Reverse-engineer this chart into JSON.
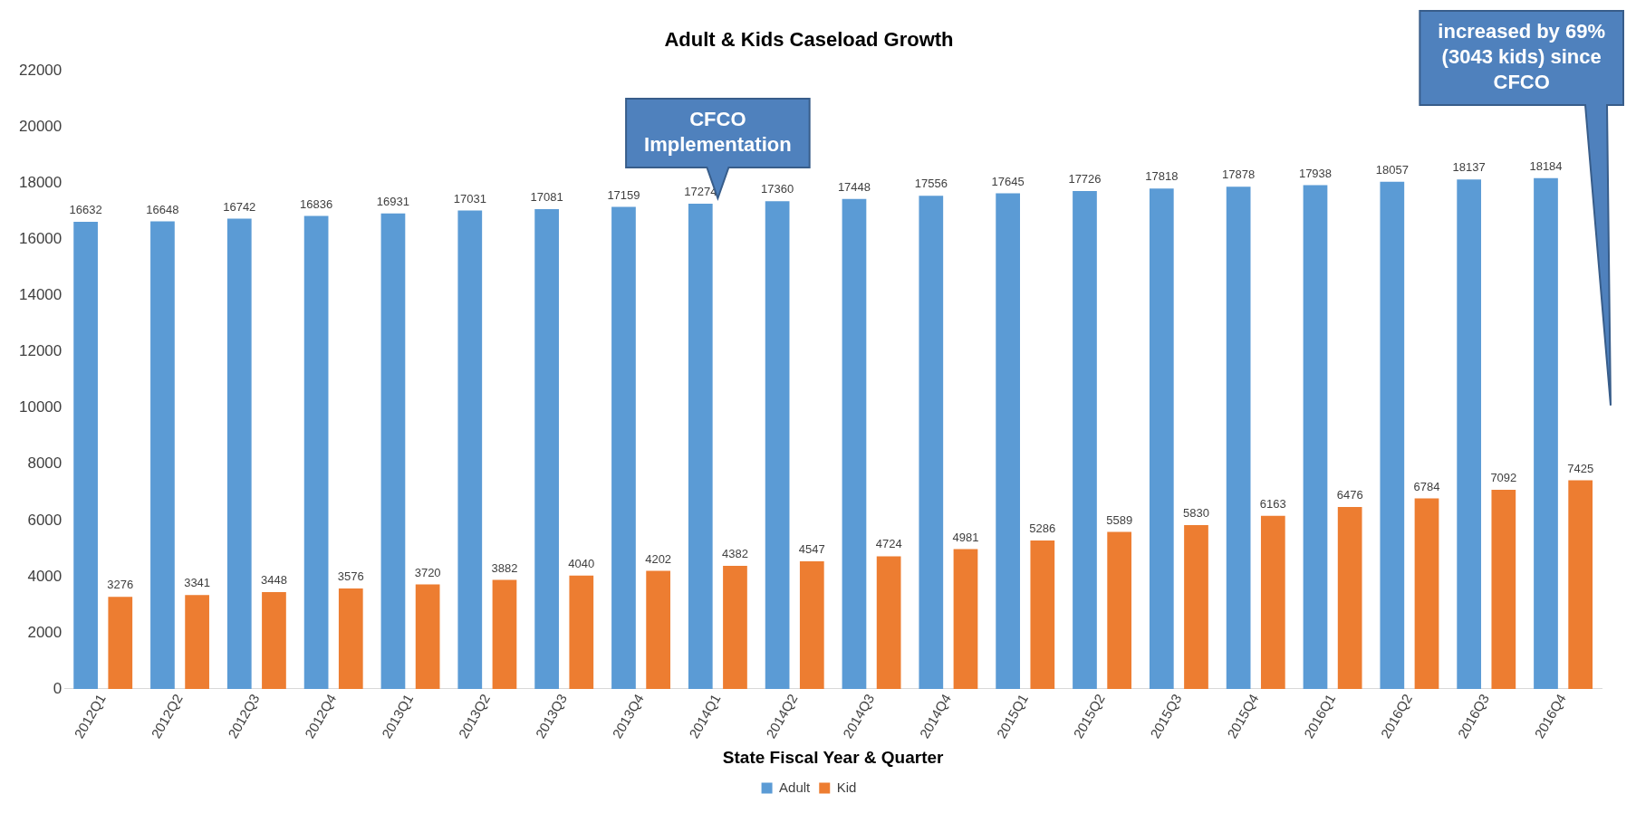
{
  "chart_data": {
    "type": "bar",
    "title": "Adult & Kids Caseload Growth",
    "xlabel": "State Fiscal Year & Quarter",
    "categories": [
      "2012Q1",
      "2012Q2",
      "2012Q3",
      "2012Q4",
      "2013Q1",
      "2013Q2",
      "2013Q3",
      "2013Q4",
      "2014Q1",
      "2014Q2",
      "2014Q3",
      "2014Q4",
      "2015Q1",
      "2015Q2",
      "2015Q3",
      "2015Q4",
      "2016Q1",
      "2016Q2",
      "2016Q3",
      "2016Q4"
    ],
    "series": [
      {
        "name": "Adult",
        "color": "#5b9bd5",
        "values": [
          16632,
          16648,
          16742,
          16836,
          16931,
          17031,
          17081,
          17159,
          17274,
          17360,
          17448,
          17556,
          17645,
          17726,
          17818,
          17878,
          17938,
          18057,
          18137,
          18184
        ]
      },
      {
        "name": "Kid",
        "color": "#ed7d31",
        "values": [
          3276,
          3341,
          3448,
          3576,
          3720,
          3882,
          4040,
          4202,
          4382,
          4547,
          4724,
          4981,
          5286,
          5589,
          5830,
          6163,
          6476,
          6784,
          7092,
          7425
        ]
      }
    ],
    "ylim": [
      0,
      22000
    ],
    "yticks": [
      0,
      2000,
      4000,
      6000,
      8000,
      10000,
      12000,
      14000,
      16000,
      18000,
      20000,
      22000
    ],
    "grid": false,
    "legend": "bottom",
    "data_labels": true,
    "annotations": [
      {
        "text": "CFCO Implementation",
        "x": "2014Q1",
        "y": 17274
      },
      "increased by 69% (3043 kids) since CFCO"
    ]
  }
}
